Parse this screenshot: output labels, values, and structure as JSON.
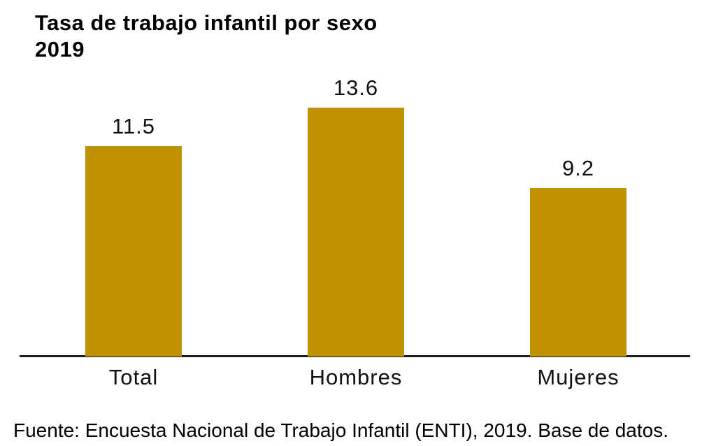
{
  "title": {
    "line1": "Tasa de trabajo infantil por sexo",
    "line2": "2019"
  },
  "chart_data": {
    "type": "bar",
    "title": "Tasa de trabajo infantil por sexo 2019",
    "categories": [
      "Total",
      "Hombres",
      "Mujeres"
    ],
    "values": [
      11.5,
      13.6,
      9.2
    ],
    "value_labels": [
      "11.5",
      "13.6",
      "9.2"
    ],
    "xlabel": "",
    "ylabel": "",
    "ylim": [
      0,
      14.5
    ],
    "grid": false,
    "legend": false,
    "bar_color": "#C09202",
    "axis_color": "#1C1C1C",
    "text_color": "#111111"
  },
  "footer": {
    "source": "Fuente: Encuesta Nacional de Trabajo Infantil (ENTI), 2019. Base de datos."
  }
}
